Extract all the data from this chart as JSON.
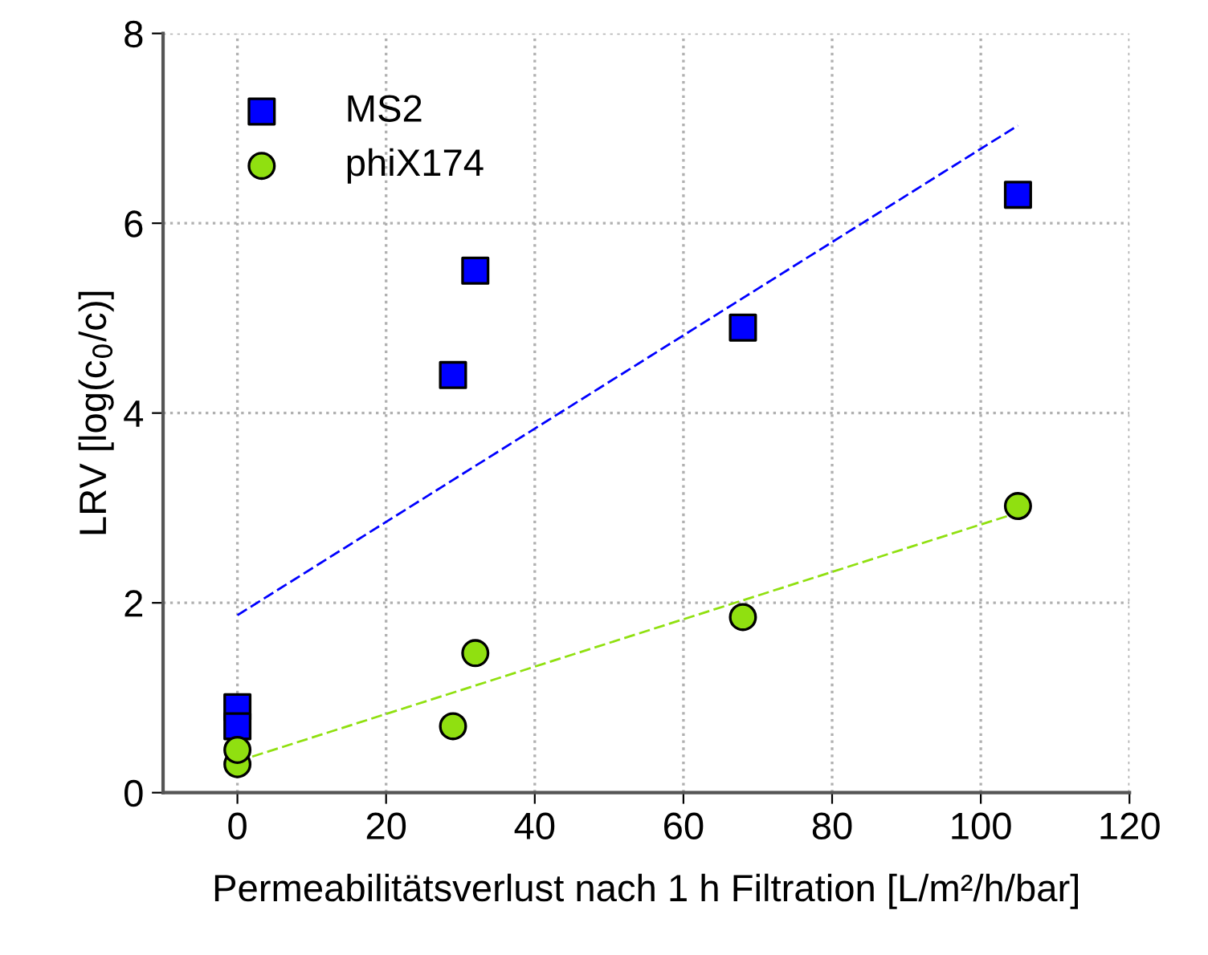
{
  "chart_data": {
    "type": "scatter",
    "xlabel": "Permeabilitätsverlust nach 1 h Filtration [L/m²/h/bar]",
    "ylabel": "LRV [log(c$_{0}$/c)]",
    "xlim": [
      -10,
      120
    ],
    "xticks": [
      0,
      20,
      40,
      60,
      80,
      100,
      120
    ],
    "ylim": [
      0,
      8
    ],
    "yticks": [
      0,
      2,
      4,
      6,
      8
    ],
    "grid": true,
    "legend": "top left",
    "series": [
      {
        "name": "MS2",
        "color": "#0000ff",
        "marker": "square",
        "x": [
          0,
          0,
          29,
          32,
          68,
          105
        ],
        "values": [
          0.9,
          0.7,
          4.4,
          5.5,
          4.9,
          6.3
        ]
      },
      {
        "name": "phiX174",
        "color": "#90e010",
        "marker": "circle",
        "x": [
          0,
          0,
          29,
          32,
          68,
          105
        ],
        "values": [
          0.3,
          0.45,
          0.7,
          1.47,
          1.85,
          3.02
        ]
      },
      {
        "type": "line",
        "color": "#0000ff",
        "line_style": "dashed",
        "x": [
          0,
          105
        ],
        "values": [
          1.87,
          7.03
        ]
      },
      {
        "type": "line",
        "color": "#90e010",
        "line_style": "dashed",
        "x": [
          0,
          105
        ],
        "values": [
          0.33,
          2.95
        ]
      }
    ]
  }
}
